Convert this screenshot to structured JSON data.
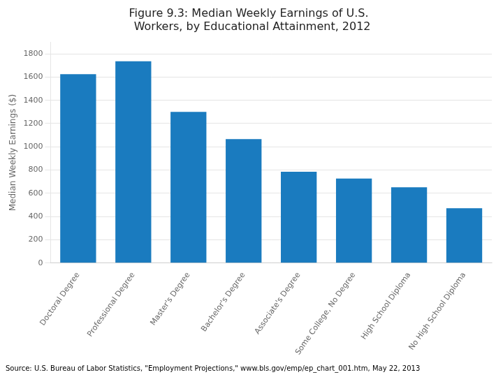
{
  "chart_data": {
    "type": "bar",
    "title": "Figure 9.3: Median Weekly Earnings of U.S.\n  Workers, by Educational Attainment, 2012",
    "y_label": "Median Weekly Earnings ($)",
    "categories": [
      "Doctoral Degree",
      "Professional Degree",
      "Master's Degree",
      "Bachelor's Degree",
      "Associate's Degree",
      "Some College, No Degree",
      "High School Diploma",
      "No High School Diploma"
    ],
    "values": [
      1624,
      1735,
      1300,
      1066,
      785,
      727,
      652,
      471
    ],
    "color": "#1a7bbf",
    "ylim": [
      0,
      1900
    ],
    "yticks": [
      0,
      200,
      400,
      600,
      800,
      1000,
      1200,
      1400,
      1600,
      1800
    ],
    "grid": true,
    "source": "Source: U.S. Bureau of Labor Statistics, \"Employment Projections,\" www.bls.gov/emp/ep_chart_001.htm, May 22, 2013"
  }
}
